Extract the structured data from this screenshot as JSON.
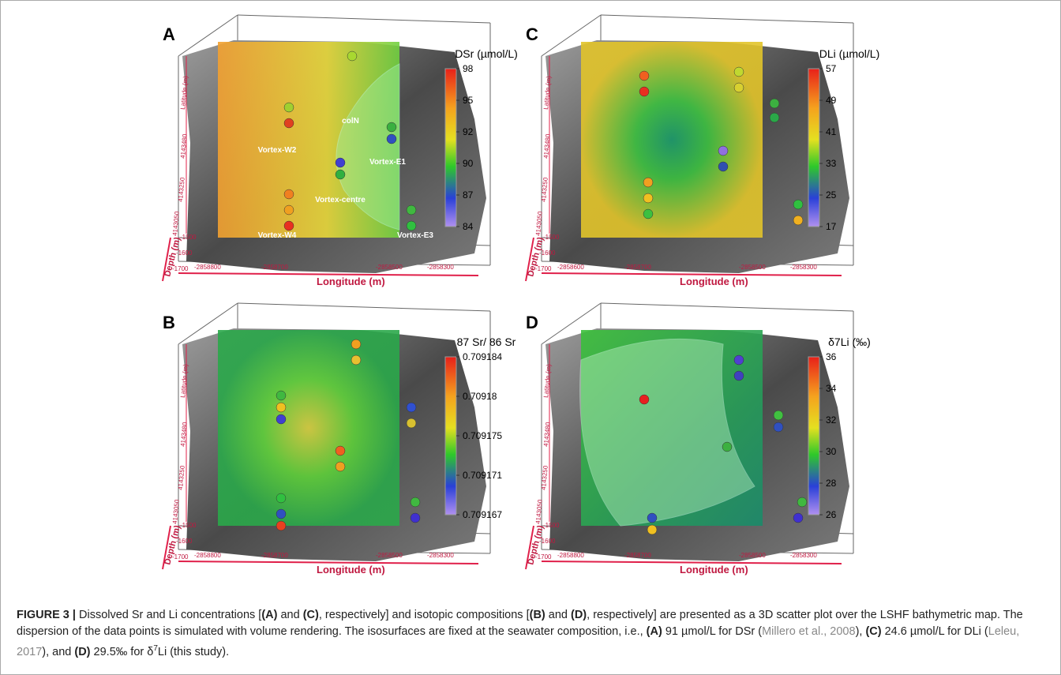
{
  "figure": {
    "panels": [
      {
        "letter": "A",
        "colorbar": {
          "title": "DSr (µmol/L)",
          "ticks": [
            "98",
            "95",
            "92",
            "90",
            "87",
            "84"
          ]
        },
        "x_label": "Longitude (m)",
        "x_ticks": [
          "-2858800",
          "-2858700",
          "-2858500",
          "-2858300"
        ],
        "y_label": "Depth (m)",
        "y_ticks": [
          "-1500",
          "-1600",
          "-1700"
        ],
        "lat_label": "Latitude (m)",
        "lat_ticks": [
          "4143480",
          "4143250",
          "4143050"
        ],
        "annotations": [
          "Vortex-W2",
          "colN",
          "Vortex-E1",
          "Vortex-centre",
          "Vortex-W4",
          "Vortex-E3"
        ]
      },
      {
        "letter": "C",
        "colorbar": {
          "title": "DLi (µmol/L)",
          "ticks": [
            "57",
            "49",
            "41",
            "33",
            "25",
            "17"
          ]
        },
        "x_label": "Longitude (m)",
        "x_ticks": [
          "-2858600",
          "-2858700",
          "-2858500",
          "-2858300"
        ],
        "y_label": "Depth (m)",
        "y_ticks": [
          "-1500",
          "-1600",
          "-1700"
        ],
        "lat_label": "Latitude (m)",
        "lat_ticks": [
          "4143480",
          "4143250",
          "4143050"
        ]
      },
      {
        "letter": "B",
        "colorbar": {
          "title": "87 Sr/ 86 Sr",
          "ticks": [
            "0.709184",
            "0.70918",
            "0.709175",
            "0.709171",
            "0.709167"
          ]
        },
        "x_label": "Longitude (m)",
        "x_ticks": [
          "-2858800",
          "-2858700",
          "-2858500",
          "-2858300"
        ],
        "y_label": "Depth (m)",
        "y_ticks": [
          "-1500",
          "-1600",
          "-1700"
        ],
        "lat_label": "Latitude (m)",
        "lat_ticks": [
          "4143480",
          "4143250",
          "4143050"
        ]
      },
      {
        "letter": "D",
        "colorbar": {
          "title": "δ7Li (‰)",
          "ticks": [
            "36",
            "34",
            "32",
            "30",
            "28",
            "26"
          ]
        },
        "x_label": "Longitude (m)",
        "x_ticks": [
          "-2858800",
          "-2858700",
          "-2858500",
          "-2858300"
        ],
        "y_label": "Depth (m)",
        "y_ticks": [
          "-1500",
          "-1600",
          "-1700"
        ],
        "lat_label": "Latitude (m)",
        "lat_ticks": [
          "4143480",
          "4143250",
          "4143050"
        ]
      }
    ],
    "caption": [
      {
        "text": "FIGURE 3 |",
        "style": "bold"
      },
      {
        "text": " Dissolved Sr and Li concentrations [",
        "style": "normal"
      },
      {
        "text": "(A)",
        "style": "bold"
      },
      {
        "text": " and ",
        "style": "normal"
      },
      {
        "text": "(C)",
        "style": "bold"
      },
      {
        "text": ", respectively] and isotopic compositions [",
        "style": "normal"
      },
      {
        "text": "(B)",
        "style": "bold"
      },
      {
        "text": " and ",
        "style": "normal"
      },
      {
        "text": "(D)",
        "style": "bold"
      },
      {
        "text": ", respectively] are presented as a 3D scatter plot over the LSHF bathymetric map. The dispersion of the data points is simulated with volume rendering. The isosurfaces are fixed at the seawater composition, i.e., ",
        "style": "normal"
      },
      {
        "text": "(A)",
        "style": "bold"
      },
      {
        "text": " 91 µmol/L for DSr (",
        "style": "normal"
      },
      {
        "text": "Millero et al., 2008",
        "style": "link"
      },
      {
        "text": "), ",
        "style": "normal"
      },
      {
        "text": "(C)",
        "style": "bold"
      },
      {
        "text": " 24.6 µmol/L for DLi (",
        "style": "normal"
      },
      {
        "text": "Leleu, 2017",
        "style": "link"
      },
      {
        "text": "), and ",
        "style": "normal"
      },
      {
        "text": "(D)",
        "style": "bold"
      },
      {
        "text": " 29.5‰ for δ",
        "style": "normal"
      },
      {
        "text": "7",
        "style": "sup"
      },
      {
        "text": "Li (this study).",
        "style": "normal"
      }
    ]
  }
}
